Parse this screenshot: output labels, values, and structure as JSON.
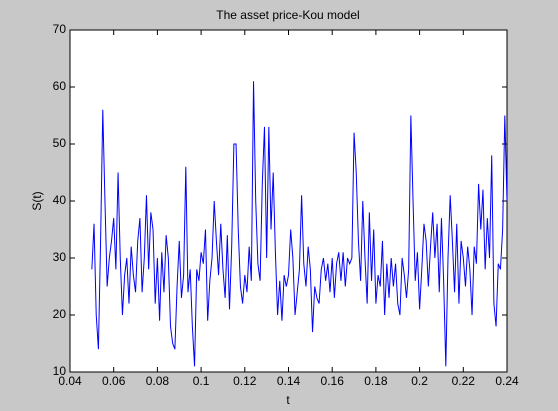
{
  "chart_data": {
    "type": "line",
    "title": "The asset price-Kou model",
    "x_label": "t",
    "y_label": "S(t)",
    "x": [
      0.05,
      0.051,
      0.052,
      0.053,
      0.054,
      0.055,
      0.056,
      0.057,
      0.058,
      0.059,
      0.06,
      0.061,
      0.062,
      0.063,
      0.064,
      0.065,
      0.066,
      0.067,
      0.068,
      0.069,
      0.07,
      0.071,
      0.072,
      0.073,
      0.074,
      0.075,
      0.076,
      0.077,
      0.078,
      0.079,
      0.08,
      0.081,
      0.082,
      0.083,
      0.084,
      0.085,
      0.086,
      0.087,
      0.088,
      0.089,
      0.09,
      0.091,
      0.092,
      0.093,
      0.094,
      0.095,
      0.096,
      0.097,
      0.098,
      0.099,
      0.1,
      0.101,
      0.102,
      0.103,
      0.104,
      0.105,
      0.106,
      0.107,
      0.108,
      0.109,
      0.11,
      0.111,
      0.112,
      0.113,
      0.114,
      0.115,
      0.116,
      0.117,
      0.118,
      0.119,
      0.12,
      0.121,
      0.122,
      0.123,
      0.124,
      0.125,
      0.126,
      0.127,
      0.128,
      0.129,
      0.13,
      0.131,
      0.132,
      0.133,
      0.134,
      0.135,
      0.136,
      0.137,
      0.138,
      0.139,
      0.14,
      0.141,
      0.142,
      0.143,
      0.144,
      0.145,
      0.146,
      0.147,
      0.148,
      0.149,
      0.15,
      0.151,
      0.152,
      0.153,
      0.154,
      0.155,
      0.156,
      0.157,
      0.158,
      0.159,
      0.16,
      0.161,
      0.162,
      0.163,
      0.164,
      0.165,
      0.166,
      0.167,
      0.168,
      0.169,
      0.17,
      0.171,
      0.172,
      0.173,
      0.174,
      0.175,
      0.176,
      0.177,
      0.178,
      0.179,
      0.18,
      0.181,
      0.182,
      0.183,
      0.184,
      0.185,
      0.186,
      0.187,
      0.188,
      0.189,
      0.19,
      0.191,
      0.192,
      0.193,
      0.194,
      0.195,
      0.196,
      0.197,
      0.198,
      0.199,
      0.2,
      0.201,
      0.202,
      0.203,
      0.204,
      0.205,
      0.206,
      0.207,
      0.208,
      0.209,
      0.21,
      0.211,
      0.212,
      0.213,
      0.214,
      0.215,
      0.216,
      0.217,
      0.218,
      0.219,
      0.22,
      0.221,
      0.222,
      0.223,
      0.224,
      0.225,
      0.226,
      0.227,
      0.228,
      0.229,
      0.23,
      0.231,
      0.232,
      0.233,
      0.234,
      0.235,
      0.236,
      0.237,
      0.238,
      0.239,
      0.24
    ],
    "series": [
      {
        "color": "#0000ff",
        "values": [
          28,
          36,
          20,
          14,
          33,
          56,
          40,
          25,
          30,
          33,
          37,
          28,
          45,
          30,
          20,
          27,
          30,
          22,
          32,
          27,
          24,
          33,
          37,
          24,
          30,
          41,
          28,
          38,
          35,
          22,
          30,
          19,
          31,
          24,
          34,
          30,
          18,
          15,
          14,
          25,
          33,
          23,
          27,
          46,
          24,
          28,
          18,
          11,
          28,
          26,
          31,
          29,
          35,
          19,
          26,
          30,
          40,
          33,
          27,
          36,
          28,
          23,
          34,
          21,
          32,
          50,
          50,
          35,
          25,
          22,
          27,
          24,
          32,
          26,
          61,
          40,
          29,
          26,
          43,
          53,
          30,
          53,
          35,
          45,
          31,
          20,
          26,
          19,
          27,
          25,
          27,
          35,
          30,
          20,
          24,
          28,
          41,
          29,
          25,
          32,
          28,
          17,
          25,
          23,
          22,
          28,
          30,
          26,
          29,
          24,
          30,
          23,
          29,
          31,
          26,
          31,
          25,
          30,
          29,
          30,
          52,
          45,
          33,
          26,
          40,
          30,
          22,
          38,
          26,
          35,
          22,
          27,
          25,
          33,
          20,
          29,
          23,
          30,
          25,
          29,
          22,
          20,
          30,
          27,
          23,
          28,
          55,
          40,
          26,
          31,
          21,
          28,
          36,
          33,
          25,
          32,
          38,
          30,
          36,
          24,
          37,
          26,
          11,
          30,
          41,
          33,
          24,
          36,
          22,
          33,
          30,
          25,
          32,
          28,
          20,
          32,
          29,
          43,
          35,
          42,
          28,
          37,
          30,
          48,
          22,
          18,
          29,
          28,
          35,
          55,
          40
        ]
      }
    ],
    "xlim": [
      0.04,
      0.24
    ],
    "xticks": [
      0.04,
      0.06,
      0.08,
      0.1,
      0.12,
      0.14,
      0.16,
      0.18,
      0.2,
      0.22,
      0.24
    ],
    "ylim": [
      10,
      70
    ],
    "yticks": [
      10,
      20,
      30,
      40,
      50,
      60,
      70
    ]
  }
}
